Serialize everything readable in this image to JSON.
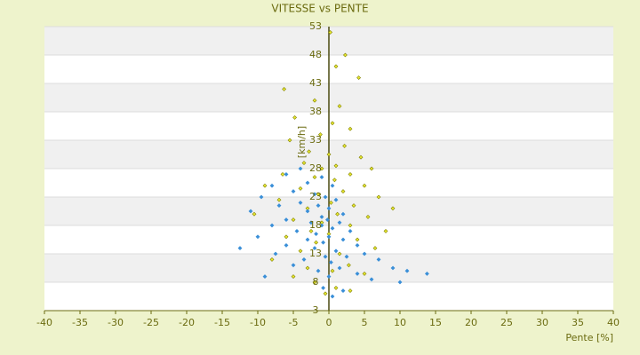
{
  "chart_data": {
    "type": "scatter",
    "title": "VITESSE vs PENTE",
    "x_label": "Pente [%]",
    "y_label": "[km/h]",
    "xlim": [
      -40,
      40
    ],
    "xticks": [
      -40,
      -35,
      -30,
      -25,
      -20,
      -15,
      -10,
      -5,
      0,
      5,
      10,
      15,
      20,
      25,
      30,
      35,
      40
    ],
    "ylim": [
      3,
      53
    ],
    "yticks": [
      3,
      8,
      13,
      18,
      23,
      28,
      33,
      38,
      43,
      48,
      53
    ],
    "grid": true,
    "series": [
      {
        "color": "#808000",
        "fill": "#e8e830",
        "x": [
          0.2,
          2.3,
          1,
          4.2,
          -6.3,
          -2,
          1.5,
          -4.8,
          0.5,
          3,
          -1.2,
          -5.5,
          2.2,
          -2.8,
          0,
          4.5,
          -3.5,
          1,
          -1,
          6,
          -6.5,
          3,
          -2,
          0.8,
          -9,
          5,
          -4,
          2,
          -1.5,
          7,
          -7,
          0.3,
          3.5,
          -3,
          9,
          -10.5,
          1.2,
          5.5,
          -5,
          -1,
          3,
          8,
          -2.5,
          0,
          -6,
          4,
          -1.8,
          6.5,
          -4,
          1.5,
          -8,
          2.8,
          -3,
          0.5,
          5,
          -5,
          -2,
          1,
          3,
          -0.5
        ],
        "values": [
          52,
          48,
          46,
          44,
          42,
          40,
          39,
          37,
          36,
          35,
          34,
          33,
          32,
          31,
          30.5,
          30,
          29,
          28.5,
          28,
          28,
          27,
          27,
          26.5,
          26,
          25,
          25,
          24.5,
          24,
          23.5,
          23,
          22.5,
          22,
          21.5,
          21,
          21,
          20,
          20,
          19.5,
          19,
          18.5,
          18,
          17,
          17,
          16.5,
          16,
          15.5,
          15,
          14,
          13.5,
          13,
          12,
          11,
          10.5,
          10,
          9.5,
          9,
          8,
          7,
          6.5,
          6
        ]
      },
      {
        "color": "#3a8fd8",
        "fill": "#3a8fd8",
        "x": [
          -4,
          -6,
          -1,
          -3,
          -8,
          0.5,
          -5,
          -2,
          -9.5,
          -0.5,
          1,
          -4,
          -7,
          -1.5,
          0,
          -11,
          -3,
          2,
          -1,
          -6,
          -0.2,
          -2.5,
          1.5,
          -8,
          -1,
          0.5,
          -4.5,
          3,
          -1.8,
          -10,
          0,
          -3,
          2,
          -0.8,
          -6,
          4,
          -12.5,
          -2,
          1,
          5,
          -7.5,
          -0.5,
          2.5,
          -3.5,
          7,
          0.3,
          -5,
          9,
          1.5,
          -1.5,
          11,
          13.8,
          4,
          -9,
          0,
          6,
          10,
          -0.8,
          2,
          0.5
        ],
        "values": [
          28,
          27,
          26.5,
          25.5,
          25,
          25,
          24,
          23.5,
          23,
          23,
          22.5,
          22,
          21.5,
          21.5,
          21,
          20.5,
          20.5,
          20,
          19.5,
          19,
          19,
          18.5,
          18.5,
          18,
          18,
          17.5,
          17,
          17,
          16.5,
          16,
          16,
          15.5,
          15.5,
          15,
          14.5,
          14.5,
          14,
          14,
          13.5,
          13,
          13,
          12.5,
          12.5,
          12,
          12,
          11.5,
          11,
          10.5,
          10.5,
          10,
          10,
          9.5,
          9.5,
          9,
          9,
          8.5,
          8,
          7,
          6.5,
          5.5
        ]
      }
    ]
  }
}
